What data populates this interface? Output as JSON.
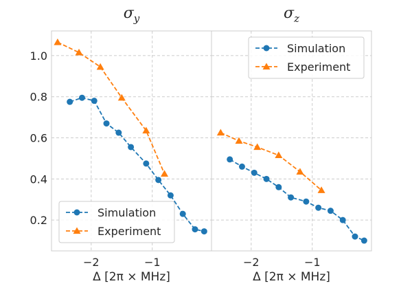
{
  "chart_data": [
    {
      "type": "line",
      "title": "σ",
      "title_sub": "y",
      "xlabel": "Δ [2π × MHz]",
      "ylabel": "",
      "xlim": [
        -2.65,
        -0.03
      ],
      "ylim": [
        0.05,
        1.12
      ],
      "xticks": [
        -2,
        -1
      ],
      "xtick_labels": [
        "−2",
        "−1"
      ],
      "yticks": [
        0.2,
        0.4,
        0.6,
        0.8,
        1.0
      ],
      "ytick_labels": [
        "0.2",
        "0.4",
        "0.6",
        "0.8",
        "1.0"
      ],
      "grid": true,
      "legend_position": "lower-left",
      "series": [
        {
          "name": "Simulation",
          "color": "#1f77b4",
          "marker": "circle",
          "linestyle": "dashed",
          "x": [
            -2.35,
            -2.15,
            -1.95,
            -1.75,
            -1.55,
            -1.35,
            -1.1,
            -0.9,
            -0.7,
            -0.5,
            -0.3,
            -0.15
          ],
          "y": [
            0.775,
            0.795,
            0.78,
            0.67,
            0.625,
            0.555,
            0.475,
            0.395,
            0.32,
            0.23,
            0.155,
            0.145
          ]
        },
        {
          "name": "Experiment",
          "color": "#ff7f0e",
          "marker": "triangle",
          "linestyle": "dashed",
          "x": [
            -2.55,
            -2.2,
            -1.85,
            -1.5,
            -1.1,
            -0.8
          ],
          "y": [
            1.065,
            1.015,
            0.945,
            0.795,
            0.635,
            0.425
          ]
        }
      ]
    },
    {
      "type": "line",
      "title": "σ",
      "title_sub": "z",
      "xlabel": "Δ [2π × MHz]",
      "ylabel": "",
      "xlim": [
        -2.65,
        -0.03
      ],
      "ylim": [
        0.05,
        1.12
      ],
      "xticks": [
        -2,
        -1
      ],
      "xtick_labels": [
        "−2",
        "−1"
      ],
      "grid": true,
      "legend_position": "upper-right",
      "series": [
        {
          "name": "Simulation",
          "color": "#1f77b4",
          "marker": "circle",
          "linestyle": "dashed",
          "x": [
            -2.35,
            -2.15,
            -1.95,
            -1.75,
            -1.55,
            -1.35,
            -1.1,
            -0.9,
            -0.7,
            -0.5,
            -0.3,
            -0.15
          ],
          "y": [
            0.495,
            0.46,
            0.43,
            0.4,
            0.36,
            0.31,
            0.29,
            0.26,
            0.245,
            0.2,
            0.12,
            0.1
          ]
        },
        {
          "name": "Experiment",
          "color": "#ff7f0e",
          "marker": "triangle",
          "linestyle": "dashed",
          "x": [
            -2.5,
            -2.2,
            -1.9,
            -1.55,
            -1.2,
            -0.85
          ],
          "y": [
            0.625,
            0.585,
            0.555,
            0.515,
            0.435,
            0.345
          ]
        }
      ]
    }
  ]
}
